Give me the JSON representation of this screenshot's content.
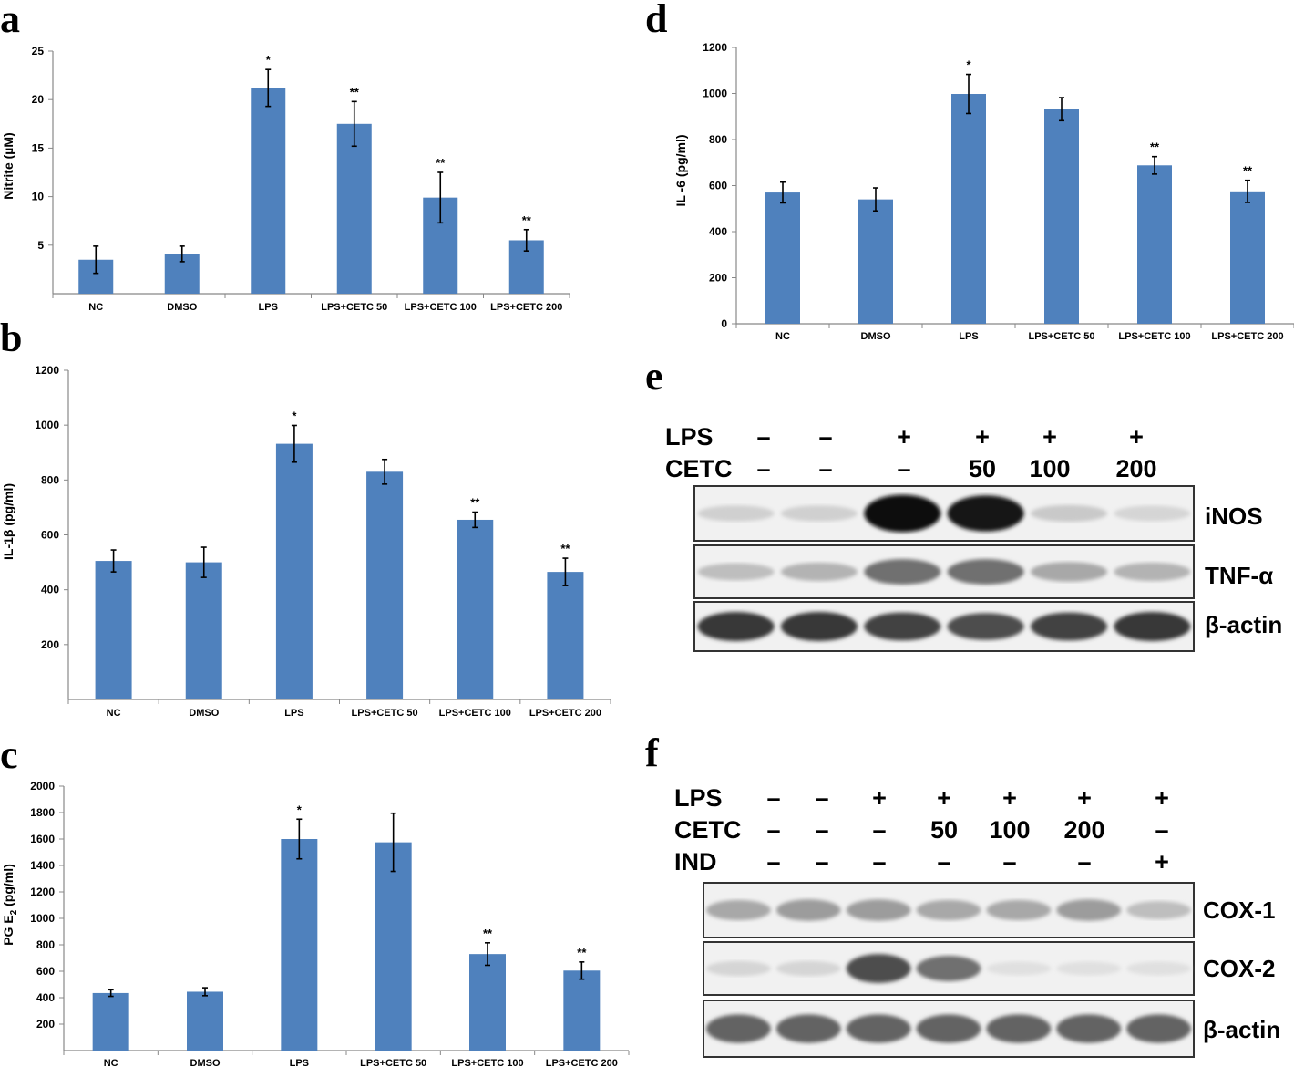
{
  "chart_data": [
    {
      "panel": "a",
      "type": "bar",
      "ylabel": "Nitrite (µM)",
      "categories": [
        "NC",
        "DMSO",
        "LPS",
        "LPS+CETC  50",
        "LPS+CETC 100",
        "LPS+CETC 200"
      ],
      "values": [
        3.5,
        4.1,
        21.2,
        17.5,
        9.9,
        5.5
      ],
      "errors": [
        1.4,
        0.8,
        1.9,
        2.3,
        2.6,
        1.1
      ],
      "significance": [
        "",
        "",
        "*",
        "**",
        "**",
        "**"
      ],
      "ylim": [
        0,
        25
      ],
      "yticks": [
        5,
        10,
        15,
        20,
        25
      ],
      "bar_color": "#4f81bd"
    },
    {
      "panel": "b",
      "type": "bar",
      "ylabel": "IL-1β (pg/ml)",
      "categories": [
        "NC",
        "DMSO",
        "LPS",
        "LPS+CETC 50",
        "LPS+CETC 100",
        "LPS+CETC 200"
      ],
      "values": [
        505,
        500,
        932,
        830,
        655,
        465
      ],
      "errors": [
        40,
        55,
        67,
        45,
        28,
        50
      ],
      "significance": [
        "",
        "",
        "*",
        "",
        "**",
        "**"
      ],
      "ylim": [
        0,
        1200
      ],
      "yticks": [
        200,
        400,
        600,
        800,
        1000,
        1200
      ],
      "bar_color": "#4f81bd"
    },
    {
      "panel": "c",
      "type": "bar",
      "ylabel": "PG E2 (pg/ml)",
      "categories": [
        "NC",
        "DMSO",
        "LPS",
        "LPS+CETC 50",
        "LPS+CETC 100",
        "LPS+CETC 200"
      ],
      "values": [
        435,
        445,
        1600,
        1575,
        730,
        605
      ],
      "errors": [
        25,
        30,
        150,
        220,
        85,
        65
      ],
      "significance": [
        "",
        "",
        "*",
        "",
        "**",
        "**"
      ],
      "ylim": [
        0,
        2000
      ],
      "yticks": [
        200,
        400,
        600,
        800,
        1000,
        1200,
        1400,
        1600,
        1800,
        2000
      ],
      "bar_color": "#4f81bd"
    },
    {
      "panel": "d",
      "type": "bar",
      "ylabel": "IL -6 (pg/ml)",
      "categories": [
        "NC",
        "DMSO",
        "LPS",
        "LPS+CETC 50",
        "LPS+CETC 100",
        "LPS+CETC 200"
      ],
      "values": [
        570,
        540,
        998,
        932,
        688,
        575
      ],
      "errors": [
        45,
        50,
        85,
        50,
        38,
        48
      ],
      "significance": [
        "",
        "",
        "*",
        "",
        "**",
        "**"
      ],
      "ylim": [
        0,
        1200
      ],
      "yticks": [
        0,
        200,
        400,
        600,
        800,
        1000,
        1200
      ],
      "bar_color": "#4f81bd"
    }
  ],
  "western_blots": [
    {
      "panel": "e",
      "conditions": [
        {
          "label": "LPS",
          "values": [
            "–",
            "–",
            "+",
            "+",
            "+",
            "+"
          ]
        },
        {
          "label": "CETC",
          "values": [
            "–",
            "–",
            "–",
            "50",
            "100",
            "200"
          ]
        }
      ],
      "bands": [
        {
          "label": "iNOS",
          "intensity": [
            0.12,
            0.12,
            1.0,
            0.95,
            0.15,
            0.1
          ]
        },
        {
          "label": "TNF-α",
          "intensity": [
            0.2,
            0.25,
            0.55,
            0.55,
            0.3,
            0.25
          ]
        },
        {
          "label": "β-actin",
          "intensity": [
            0.8,
            0.8,
            0.75,
            0.7,
            0.75,
            0.8
          ]
        }
      ]
    },
    {
      "panel": "f",
      "conditions": [
        {
          "label": "LPS",
          "values": [
            "–",
            "–",
            "+",
            "+",
            "+",
            "+",
            "+"
          ]
        },
        {
          "label": "CETC",
          "values": [
            "–",
            "–",
            "–",
            "50",
            "100",
            "200",
            "–"
          ]
        },
        {
          "label": "IND",
          "values": [
            "–",
            "–",
            "–",
            "–",
            "–",
            "–",
            "+"
          ]
        }
      ],
      "bands": [
        {
          "label": "COX-1",
          "intensity": [
            0.3,
            0.35,
            0.35,
            0.3,
            0.3,
            0.35,
            0.2
          ]
        },
        {
          "label": "COX-2",
          "intensity": [
            0.1,
            0.1,
            0.7,
            0.55,
            0.05,
            0.05,
            0.05
          ]
        },
        {
          "label": "β-actin",
          "intensity": [
            0.6,
            0.6,
            0.6,
            0.6,
            0.6,
            0.6,
            0.6
          ]
        }
      ]
    }
  ]
}
